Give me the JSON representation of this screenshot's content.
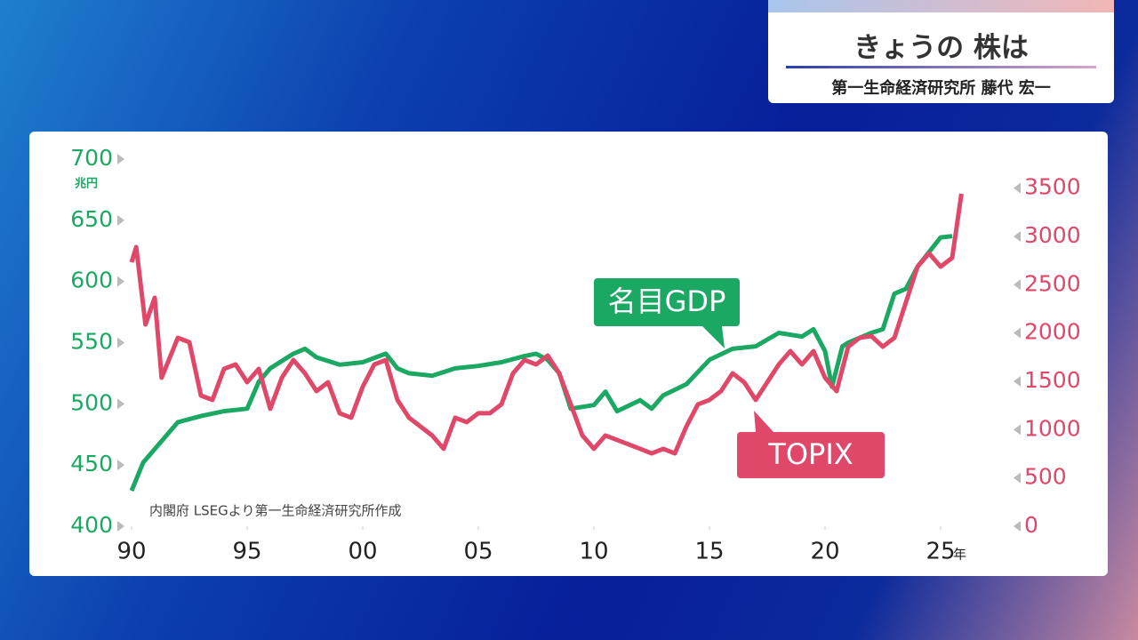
{
  "header": {
    "title": "きょうの 株は",
    "subtitle": "第一生命経済研究所 藤代 宏一"
  },
  "chart_data": {
    "type": "line",
    "source": "内閣府 LSEGより第一生命経済研究所作成",
    "y_unit": "兆円",
    "x_unit": "年",
    "xlim": [
      1990,
      2027
    ],
    "xticks": [
      {
        "value": 1990,
        "label": "90"
      },
      {
        "value": 1995,
        "label": "95"
      },
      {
        "value": 2000,
        "label": "00"
      },
      {
        "value": 2005,
        "label": "05"
      },
      {
        "value": 2010,
        "label": "10"
      },
      {
        "value": 2015,
        "label": "15"
      },
      {
        "value": 2020,
        "label": "20"
      },
      {
        "value": 2025,
        "label": "25"
      }
    ],
    "ylim": [
      400,
      700
    ],
    "yticks": [
      400,
      450,
      500,
      550,
      600,
      650,
      700
    ],
    "y2lim": [
      0,
      3800
    ],
    "y2ticks": [
      0,
      500,
      1000,
      1500,
      2000,
      2500,
      3000,
      3500
    ],
    "series": [
      {
        "name": "名目GDP",
        "color": "#1aa863",
        "axis": "y",
        "x": [
          1990,
          1990.5,
          1991,
          1992,
          1993,
          1994,
          1995,
          1995.5,
          1996,
          1997,
          1997.5,
          1998,
          1999,
          2000,
          2001,
          2001.5,
          2002,
          2003,
          2004,
          2005,
          2006,
          2007,
          2007.5,
          2008,
          2008.5,
          2009,
          2010,
          2010.5,
          2011,
          2012,
          2012.5,
          2013,
          2014,
          2015,
          2016,
          2017,
          2018,
          2019,
          2019.5,
          2020,
          2020.3,
          2020.75,
          2021,
          2022,
          2022.5,
          2023,
          2023.5,
          2024,
          2025,
          2025.5
        ],
        "values": [
          429,
          452,
          463,
          485,
          490,
          494,
          496,
          518,
          529,
          541,
          545,
          538,
          532,
          534,
          541,
          529,
          525,
          523,
          529,
          531,
          534,
          539,
          541,
          536,
          525,
          496,
          499,
          510,
          494,
          503,
          496,
          507,
          516,
          536,
          545,
          547,
          558,
          555,
          561,
          543,
          514,
          547,
          550,
          558,
          561,
          590,
          594,
          612,
          636,
          637
        ]
      },
      {
        "name": "TOPIX",
        "color": "#e0486a",
        "axis": "y2",
        "x": [
          1990,
          1990.2,
          1990.6,
          1991,
          1991.3,
          1992,
          1992.5,
          1993,
          1993.5,
          1994,
          1994.5,
          1995,
          1995.5,
          1996,
          1996.5,
          1997,
          1997.5,
          1998,
          1998.5,
          1999,
          1999.5,
          2000,
          2000.5,
          2001,
          2001.5,
          2002,
          2002.5,
          2003,
          2003.5,
          2004,
          2004.5,
          2005,
          2005.5,
          2006,
          2006.5,
          2007,
          2007.5,
          2008,
          2008.5,
          2009,
          2009.5,
          2010,
          2010.5,
          2011,
          2011.5,
          2012,
          2012.5,
          2013,
          2013.5,
          2014,
          2014.5,
          2015,
          2015.5,
          2016,
          2016.5,
          2017,
          2017.5,
          2018,
          2018.5,
          2019,
          2019.5,
          2020,
          2020.5,
          2021,
          2021.5,
          2022,
          2022.5,
          2023,
          2023.5,
          2024,
          2024.5,
          2025,
          2025.5,
          2025.9
        ],
        "values": [
          2733,
          2889,
          2089,
          2365,
          1537,
          1951,
          1905,
          1353,
          1307,
          1629,
          1675,
          1491,
          1629,
          1215,
          1537,
          1721,
          1583,
          1399,
          1491,
          1169,
          1123,
          1445,
          1675,
          1721,
          1307,
          1123,
          1031,
          939,
          801,
          1123,
          1077,
          1169,
          1169,
          1261,
          1583,
          1721,
          1675,
          1767,
          1583,
          1261,
          939,
          801,
          939,
          893,
          847,
          801,
          754,
          801,
          754,
          1031,
          1261,
          1307,
          1399,
          1583,
          1491,
          1307,
          1491,
          1675,
          1813,
          1675,
          1813,
          1537,
          1399,
          1859,
          1951,
          1969,
          1859,
          1951,
          2319,
          2687,
          2825,
          2687,
          2779,
          3441
        ]
      }
    ]
  }
}
